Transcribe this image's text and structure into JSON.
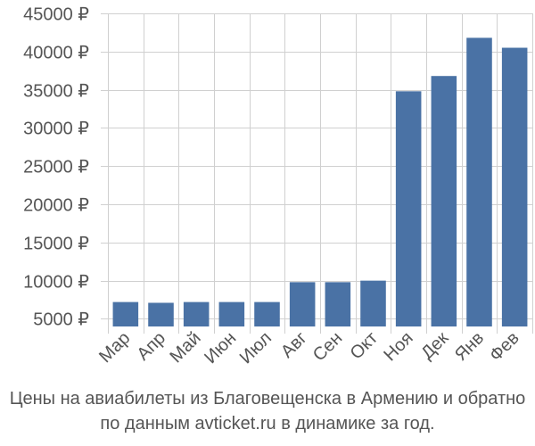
{
  "chart_data": {
    "type": "bar",
    "categories": [
      "Мар",
      "Апр",
      "Май",
      "Июн",
      "Июл",
      "Авг",
      "Сен",
      "Окт",
      "Ноя",
      "Дек",
      "Янв",
      "Фев"
    ],
    "values": [
      7200,
      7100,
      7200,
      7200,
      7200,
      9800,
      9800,
      10000,
      34800,
      36800,
      41800,
      40500
    ],
    "ylim": [
      4000,
      45000
    ],
    "yticks": [
      5000,
      10000,
      15000,
      20000,
      25000,
      30000,
      35000,
      40000,
      45000
    ],
    "currency_suffix": " ₽",
    "grid": true,
    "bar_color": "#4a72a5",
    "title": "",
    "xlabel": "",
    "ylabel": ""
  },
  "caption": {
    "line1": "Цены на авиабилеты из Благовещенска в Армению и обратно",
    "line2": "по данным avticket.ru в динамике за год."
  }
}
